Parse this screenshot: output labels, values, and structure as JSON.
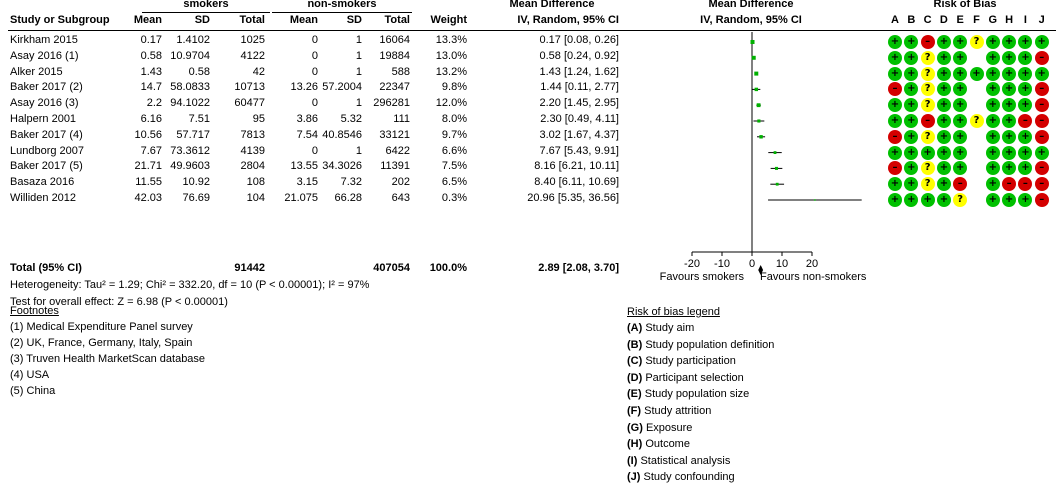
{
  "headers": {
    "smokers": "smokers",
    "non_smokers": "non-smokers",
    "md_top": "Mean Difference",
    "md_top2": "Mean Difference",
    "rob": "Risk of Bias",
    "study": "Study or Subgroup",
    "mean1": "Mean",
    "sd1": "SD",
    "total1": "Total",
    "mean2": "Mean",
    "sd2": "SD",
    "total2": "Total",
    "weight": "Weight",
    "md_sub": "IV, Random, 95% CI",
    "md_sub2": "IV, Random, 95% CI",
    "rob_letters": [
      "A",
      "B",
      "C",
      "D",
      "E",
      "F",
      "G",
      "H",
      "I",
      "J"
    ]
  },
  "studies": [
    {
      "name": "Kirkham 2015",
      "m1": "0.17",
      "sd1": "1.4102",
      "n1": "1025",
      "m2": "0",
      "sd2": "1",
      "n2": "16064",
      "w": "13.3%",
      "ci": "0.17 [0.08, 0.26]",
      "rob": [
        "g",
        "g",
        "r",
        "g",
        "g",
        "y",
        "g",
        "g",
        "g",
        "g"
      ]
    },
    {
      "name": "Asay 2016 (1)",
      "m1": "0.58",
      "sd1": "10.9704",
      "n1": "4122",
      "m2": "0",
      "sd2": "1",
      "n2": "19884",
      "w": "13.0%",
      "ci": "0.58 [0.24, 0.92]",
      "rob": [
        "g",
        "g",
        "y",
        "g",
        "g",
        "",
        "g",
        "g",
        "g",
        "r"
      ]
    },
    {
      "name": "Alker 2015",
      "m1": "1.43",
      "sd1": "0.58",
      "n1": "42",
      "m2": "0",
      "sd2": "1",
      "n2": "588",
      "w": "13.2%",
      "ci": "1.43 [1.24, 1.62]",
      "rob": [
        "g",
        "g",
        "y",
        "g",
        "g",
        "g",
        "g",
        "g",
        "g",
        "g"
      ]
    },
    {
      "name": "Baker 2017 (2)",
      "m1": "14.7",
      "sd1": "58.0833",
      "n1": "10713",
      "m2": "13.26",
      "sd2": "57.2004",
      "n2": "22347",
      "w": "9.8%",
      "ci": "1.44 [0.11, 2.77]",
      "rob": [
        "r",
        "g",
        "y",
        "g",
        "g",
        "",
        "g",
        "g",
        "g",
        "r"
      ]
    },
    {
      "name": "Asay 2016 (3)",
      "m1": "2.2",
      "sd1": "94.1022",
      "n1": "60477",
      "m2": "0",
      "sd2": "1",
      "n2": "296281",
      "w": "12.0%",
      "ci": "2.20 [1.45, 2.95]",
      "rob": [
        "g",
        "g",
        "y",
        "g",
        "g",
        "",
        "g",
        "g",
        "g",
        "r"
      ]
    },
    {
      "name": "Halpern 2001",
      "m1": "6.16",
      "sd1": "7.51",
      "n1": "95",
      "m2": "3.86",
      "sd2": "5.32",
      "n2": "111",
      "w": "8.0%",
      "ci": "2.30 [0.49, 4.11]",
      "rob": [
        "g",
        "g",
        "r",
        "g",
        "g",
        "y",
        "g",
        "g",
        "r",
        "r"
      ]
    },
    {
      "name": "Baker 2017 (4)",
      "m1": "10.56",
      "sd1": "57.717",
      "n1": "7813",
      "m2": "7.54",
      "sd2": "40.8546",
      "n2": "33121",
      "w": "9.7%",
      "ci": "3.02 [1.67, 4.37]",
      "rob": [
        "r",
        "g",
        "y",
        "g",
        "g",
        "",
        "g",
        "g",
        "g",
        "r"
      ]
    },
    {
      "name": "Lundborg 2007",
      "m1": "7.67",
      "sd1": "73.3612",
      "n1": "4139",
      "m2": "0",
      "sd2": "1",
      "n2": "6422",
      "w": "6.6%",
      "ci": "7.67 [5.43, 9.91]",
      "rob": [
        "g",
        "g",
        "g",
        "g",
        "g",
        "",
        "g",
        "g",
        "g",
        "g"
      ]
    },
    {
      "name": "Baker 2017 (5)",
      "m1": "21.71",
      "sd1": "49.9603",
      "n1": "2804",
      "m2": "13.55",
      "sd2": "34.3026",
      "n2": "11391",
      "w": "7.5%",
      "ci": "8.16 [6.21, 10.11]",
      "rob": [
        "r",
        "g",
        "y",
        "g",
        "g",
        "",
        "g",
        "g",
        "g",
        "r"
      ]
    },
    {
      "name": "Basaza 2016",
      "m1": "11.55",
      "sd1": "10.92",
      "n1": "108",
      "m2": "3.15",
      "sd2": "7.32",
      "n2": "202",
      "w": "6.5%",
      "ci": "8.40 [6.11, 10.69]",
      "rob": [
        "g",
        "g",
        "y",
        "g",
        "r",
        "",
        "g",
        "r",
        "r",
        "r"
      ]
    },
    {
      "name": "Williden 2012",
      "m1": "42.03",
      "sd1": "76.69",
      "n1": "104",
      "m2": "21.075",
      "sd2": "66.28",
      "n2": "643",
      "w": "0.3%",
      "ci": "20.96 [5.35, 36.56]",
      "rob": [
        "g",
        "g",
        "g",
        "g",
        "y",
        "",
        "g",
        "g",
        "g",
        "r"
      ]
    }
  ],
  "total": {
    "name": "Total (95% CI)",
    "n1": "91442",
    "n2": "407054",
    "w": "100.0%",
    "ci": "2.89 [2.08, 3.70]"
  },
  "heterogeneity": "Heterogeneity: Tau² = 1.29; Chi² = 332.20, df = 10 (P < 0.00001); I² = 97%",
  "overall_effect": "Test for overall effect: Z = 6.98 (P < 0.00001)",
  "footnotes_title": "Footnotes",
  "footnotes": [
    "(1) Medical Expenditure Panel survey",
    "(2) UK, France, Germany, Italy, Spain",
    "(3) Truven Health MarketScan database",
    "(4) USA",
    "(5) China"
  ],
  "legend_title": "Risk of bias legend",
  "legend": [
    {
      "k": "(A)",
      "t": " Study aim"
    },
    {
      "k": "(B)",
      "t": " Study population definition"
    },
    {
      "k": "(C)",
      "t": " Study participation"
    },
    {
      "k": "(D)",
      "t": " Participant selection"
    },
    {
      "k": "(E)",
      "t": " Study population size"
    },
    {
      "k": "(F)",
      "t": " Study attrition"
    },
    {
      "k": "(G)",
      "t": " Exposure"
    },
    {
      "k": "(H)",
      "t": " Outcome"
    },
    {
      "k": "(I)",
      "t": " Statistical analysis"
    },
    {
      "k": "(J)",
      "t": " Study confounding"
    }
  ],
  "chart_data": {
    "type": "scatter",
    "x_ticks": [
      -20,
      -10,
      0,
      10,
      20
    ],
    "x_tick_labels": [
      "-20",
      "-10",
      "0",
      "10",
      "20"
    ],
    "xlim": [
      -26,
      38
    ],
    "favours_left": "Favours smokers",
    "favours_right": "Favours non-smokers",
    "points": [
      {
        "md": 0.17,
        "lo": 0.08,
        "hi": 0.26,
        "w": 13.3
      },
      {
        "md": 0.58,
        "lo": 0.24,
        "hi": 0.92,
        "w": 13.0
      },
      {
        "md": 1.43,
        "lo": 1.24,
        "hi": 1.62,
        "w": 13.2
      },
      {
        "md": 1.44,
        "lo": 0.11,
        "hi": 2.77,
        "w": 9.8
      },
      {
        "md": 2.2,
        "lo": 1.45,
        "hi": 2.95,
        "w": 12.0
      },
      {
        "md": 2.3,
        "lo": 0.49,
        "hi": 4.11,
        "w": 8.0
      },
      {
        "md": 3.02,
        "lo": 1.67,
        "hi": 4.37,
        "w": 9.7
      },
      {
        "md": 7.67,
        "lo": 5.43,
        "hi": 9.91,
        "w": 6.6
      },
      {
        "md": 8.16,
        "lo": 6.21,
        "hi": 10.11,
        "w": 7.5
      },
      {
        "md": 8.4,
        "lo": 6.11,
        "hi": 10.69,
        "w": 6.5
      },
      {
        "md": 20.96,
        "lo": 5.35,
        "hi": 36.56,
        "w": 0.3
      }
    ],
    "total": {
      "md": 2.89,
      "lo": 2.08,
      "hi": 3.7
    },
    "point_color": "#00b000",
    "diamond_color": "#000000"
  }
}
